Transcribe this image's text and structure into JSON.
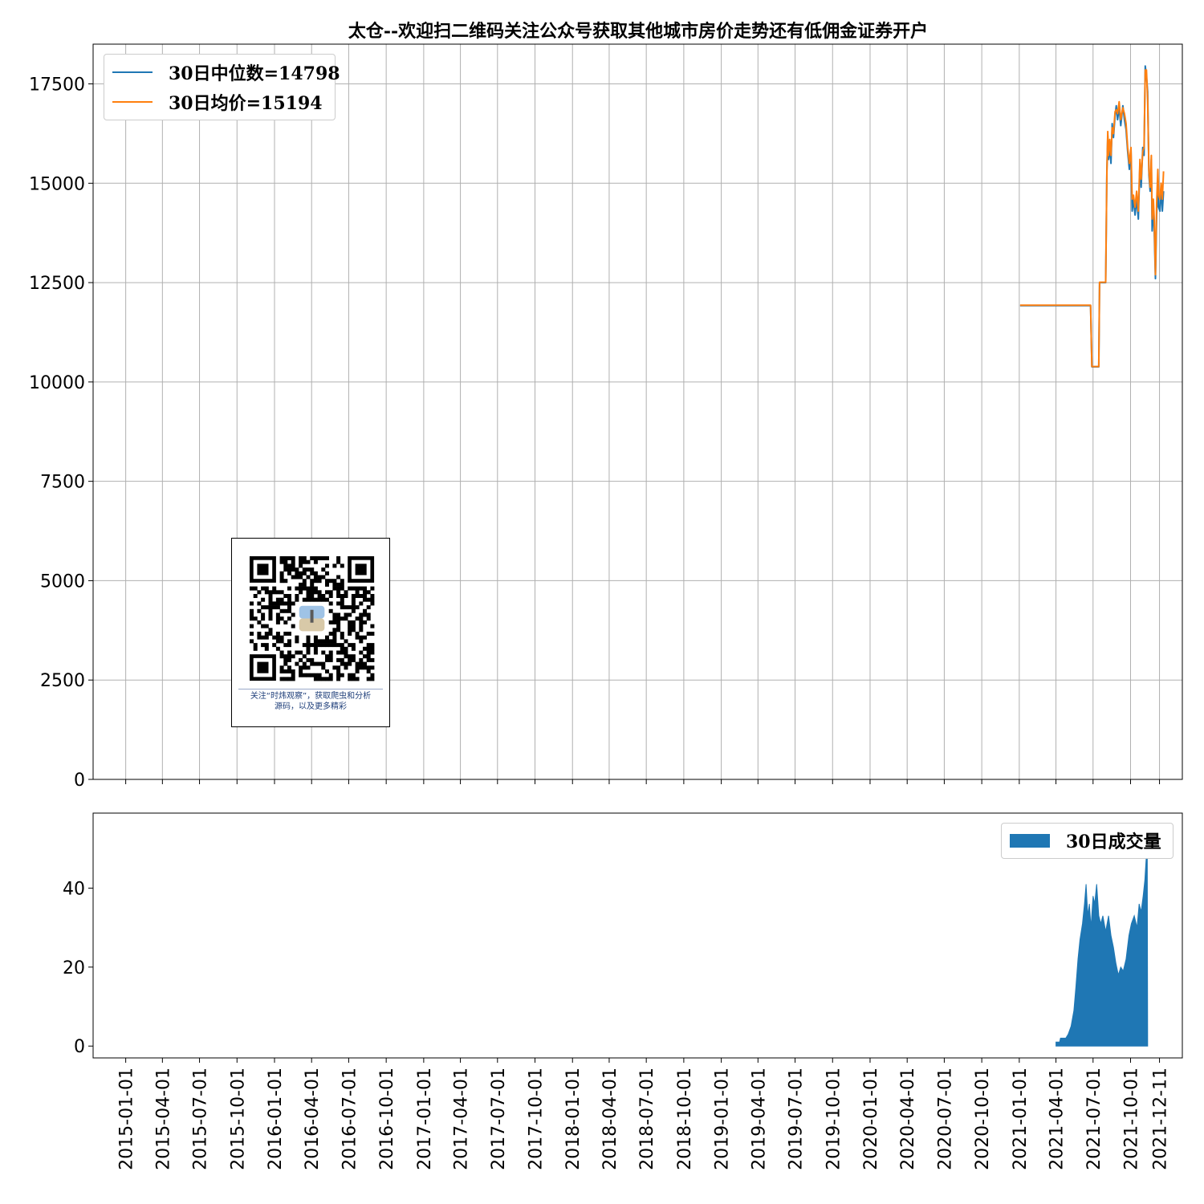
{
  "chart_data": [
    {
      "type": "line",
      "title": "太仓--欢迎扫二维码关注公众号获取其他城市房价走势还有低佣金证券开户",
      "ylim": [
        0,
        18500
      ],
      "yticks": [
        0,
        2500,
        5000,
        7500,
        10000,
        12500,
        15000,
        17500
      ],
      "ytick_labels": [
        "0",
        "2500",
        "5000",
        "7500",
        "10000",
        "12500",
        "15000",
        "17500"
      ],
      "xlim": [
        "2014-10-13",
        "2022-02-05"
      ],
      "grid": true,
      "legend_position": "upper-left",
      "series": [
        {
          "name": "30日中位数=14798",
          "color": "#1f77b4",
          "points": [
            [
              "2021-01-03",
              11920
            ],
            [
              "2021-06-25",
              11920
            ],
            [
              "2021-06-28",
              10380
            ],
            [
              "2021-07-15",
              10380
            ],
            [
              "2021-07-17",
              12500
            ],
            [
              "2021-08-01",
              12500
            ],
            [
              "2021-08-04",
              15300
            ],
            [
              "2021-08-06",
              16200
            ],
            [
              "2021-08-08",
              15600
            ],
            [
              "2021-08-11",
              15900
            ],
            [
              "2021-08-14",
              15500
            ],
            [
              "2021-08-17",
              16500
            ],
            [
              "2021-08-20",
              16150
            ],
            [
              "2021-08-24",
              16700
            ],
            [
              "2021-08-27",
              16950
            ],
            [
              "2021-08-30",
              16600
            ],
            [
              "2021-09-03",
              16900
            ],
            [
              "2021-09-07",
              16450
            ],
            [
              "2021-09-12",
              16950
            ],
            [
              "2021-09-16",
              16600
            ],
            [
              "2021-09-20",
              16350
            ],
            [
              "2021-09-24",
              15800
            ],
            [
              "2021-09-28",
              15350
            ],
            [
              "2021-10-02",
              15850
            ],
            [
              "2021-10-05",
              14300
            ],
            [
              "2021-10-08",
              14600
            ],
            [
              "2021-10-12",
              14200
            ],
            [
              "2021-10-16",
              14600
            ],
            [
              "2021-10-20",
              14100
            ],
            [
              "2021-10-24",
              15500
            ],
            [
              "2021-10-27",
              14900
            ],
            [
              "2021-10-31",
              15900
            ],
            [
              "2021-11-03",
              15700
            ],
            [
              "2021-11-06",
              17950
            ],
            [
              "2021-11-09",
              17700
            ],
            [
              "2021-11-12",
              17300
            ],
            [
              "2021-11-15",
              15200
            ],
            [
              "2021-11-18",
              14800
            ],
            [
              "2021-11-21",
              15600
            ],
            [
              "2021-11-23",
              13800
            ],
            [
              "2021-11-26",
              14400
            ],
            [
              "2021-11-28",
              13800
            ],
            [
              "2021-12-01",
              12600
            ],
            [
              "2021-12-04",
              14200
            ],
            [
              "2021-12-07",
              14900
            ],
            [
              "2021-12-09",
              14400
            ],
            [
              "2021-12-12",
              14300
            ],
            [
              "2021-12-15",
              14900
            ],
            [
              "2021-12-18",
              14300
            ],
            [
              "2021-12-21",
              14800
            ]
          ]
        },
        {
          "name": "30日均价=15194",
          "color": "#ff7f0e",
          "points": [
            [
              "2021-01-03",
              11930
            ],
            [
              "2021-06-25",
              11930
            ],
            [
              "2021-06-28",
              10390
            ],
            [
              "2021-07-15",
              10390
            ],
            [
              "2021-07-17",
              12510
            ],
            [
              "2021-08-01",
              12510
            ],
            [
              "2021-08-04",
              15250
            ],
            [
              "2021-08-06",
              16300
            ],
            [
              "2021-08-08",
              15700
            ],
            [
              "2021-08-11",
              16100
            ],
            [
              "2021-08-14",
              15700
            ],
            [
              "2021-08-17",
              16400
            ],
            [
              "2021-08-20",
              16250
            ],
            [
              "2021-08-24",
              16800
            ],
            [
              "2021-08-27",
              16850
            ],
            [
              "2021-08-30",
              16750
            ],
            [
              "2021-09-03",
              17050
            ],
            [
              "2021-09-07",
              16600
            ],
            [
              "2021-09-12",
              16900
            ],
            [
              "2021-09-16",
              16750
            ],
            [
              "2021-09-20",
              16500
            ],
            [
              "2021-09-24",
              15900
            ],
            [
              "2021-09-28",
              15500
            ],
            [
              "2021-10-02",
              15900
            ],
            [
              "2021-10-05",
              14600
            ],
            [
              "2021-10-08",
              14700
            ],
            [
              "2021-10-12",
              14400
            ],
            [
              "2021-10-16",
              14800
            ],
            [
              "2021-10-20",
              14300
            ],
            [
              "2021-10-24",
              15600
            ],
            [
              "2021-10-27",
              15100
            ],
            [
              "2021-10-31",
              15800
            ],
            [
              "2021-11-03",
              15900
            ],
            [
              "2021-11-06",
              17850
            ],
            [
              "2021-11-09",
              17850
            ],
            [
              "2021-11-12",
              17100
            ],
            [
              "2021-11-15",
              15300
            ],
            [
              "2021-11-18",
              14900
            ],
            [
              "2021-11-21",
              15700
            ],
            [
              "2021-11-23",
              14100
            ],
            [
              "2021-11-26",
              14600
            ],
            [
              "2021-11-28",
              14100
            ],
            [
              "2021-12-01",
              12700
            ],
            [
              "2021-12-04",
              14500
            ],
            [
              "2021-12-07",
              15350
            ],
            [
              "2021-12-09",
              14700
            ],
            [
              "2021-12-12",
              14600
            ],
            [
              "2021-12-15",
              15000
            ],
            [
              "2021-12-18",
              14600
            ],
            [
              "2021-12-21",
              15300
            ]
          ]
        }
      ]
    },
    {
      "type": "area",
      "ylim": [
        -3,
        59
      ],
      "yticks": [
        0,
        20,
        40
      ],
      "ytick_labels": [
        "0",
        "20",
        "40"
      ],
      "xlim": [
        "2014-10-13",
        "2022-02-05"
      ],
      "grid": false,
      "legend_position": "upper-right",
      "x_tick_labels": [
        "2015-01-01",
        "2015-04-01",
        "2015-07-01",
        "2015-10-01",
        "2016-01-01",
        "2016-04-01",
        "2016-07-01",
        "2016-10-01",
        "2017-01-01",
        "2017-04-01",
        "2017-07-01",
        "2017-10-01",
        "2018-01-01",
        "2018-04-01",
        "2018-07-01",
        "2018-10-01",
        "2019-01-01",
        "2019-04-01",
        "2019-07-01",
        "2019-10-01",
        "2020-01-01",
        "2020-04-01",
        "2020-07-01",
        "2020-10-01",
        "2021-01-01",
        "2021-04-01",
        "2021-07-01",
        "2021-10-01",
        "2021-12-11"
      ],
      "series": [
        {
          "name": "30日成交量",
          "color": "#1f77b4",
          "points": [
            [
              "2021-04-01",
              1
            ],
            [
              "2021-04-10",
              1
            ],
            [
              "2021-04-12",
              2
            ],
            [
              "2021-04-25",
              2
            ],
            [
              "2021-05-01",
              3
            ],
            [
              "2021-05-08",
              5
            ],
            [
              "2021-05-15",
              9
            ],
            [
              "2021-05-20",
              15
            ],
            [
              "2021-05-25",
              22
            ],
            [
              "2021-05-30",
              27
            ],
            [
              "2021-06-05",
              31
            ],
            [
              "2021-06-10",
              36
            ],
            [
              "2021-06-14",
              41
            ],
            [
              "2021-06-18",
              33
            ],
            [
              "2021-06-22",
              36
            ],
            [
              "2021-06-26",
              30
            ],
            [
              "2021-07-01",
              38
            ],
            [
              "2021-07-05",
              36
            ],
            [
              "2021-07-10",
              41
            ],
            [
              "2021-07-15",
              33
            ],
            [
              "2021-07-20",
              31
            ],
            [
              "2021-07-25",
              33
            ],
            [
              "2021-08-01",
              29
            ],
            [
              "2021-08-08",
              33
            ],
            [
              "2021-08-14",
              28
            ],
            [
              "2021-08-20",
              25
            ],
            [
              "2021-08-26",
              21
            ],
            [
              "2021-09-01",
              18
            ],
            [
              "2021-09-07",
              20
            ],
            [
              "2021-09-13",
              19
            ],
            [
              "2021-09-20",
              22
            ],
            [
              "2021-09-27",
              28
            ],
            [
              "2021-10-03",
              31
            ],
            [
              "2021-10-10",
              33
            ],
            [
              "2021-10-17",
              30
            ],
            [
              "2021-10-22",
              36
            ],
            [
              "2021-10-27",
              34
            ],
            [
              "2021-11-01",
              38
            ],
            [
              "2021-11-05",
              42
            ],
            [
              "2021-11-08",
              47
            ],
            [
              "2021-11-11",
              51
            ],
            [
              "2021-11-12",
              0
            ]
          ]
        }
      ]
    }
  ],
  "qr": {
    "caption_line1": "关注“时炜观察”，获取爬虫和分析",
    "caption_line2": "源码，以及更多精彩"
  }
}
